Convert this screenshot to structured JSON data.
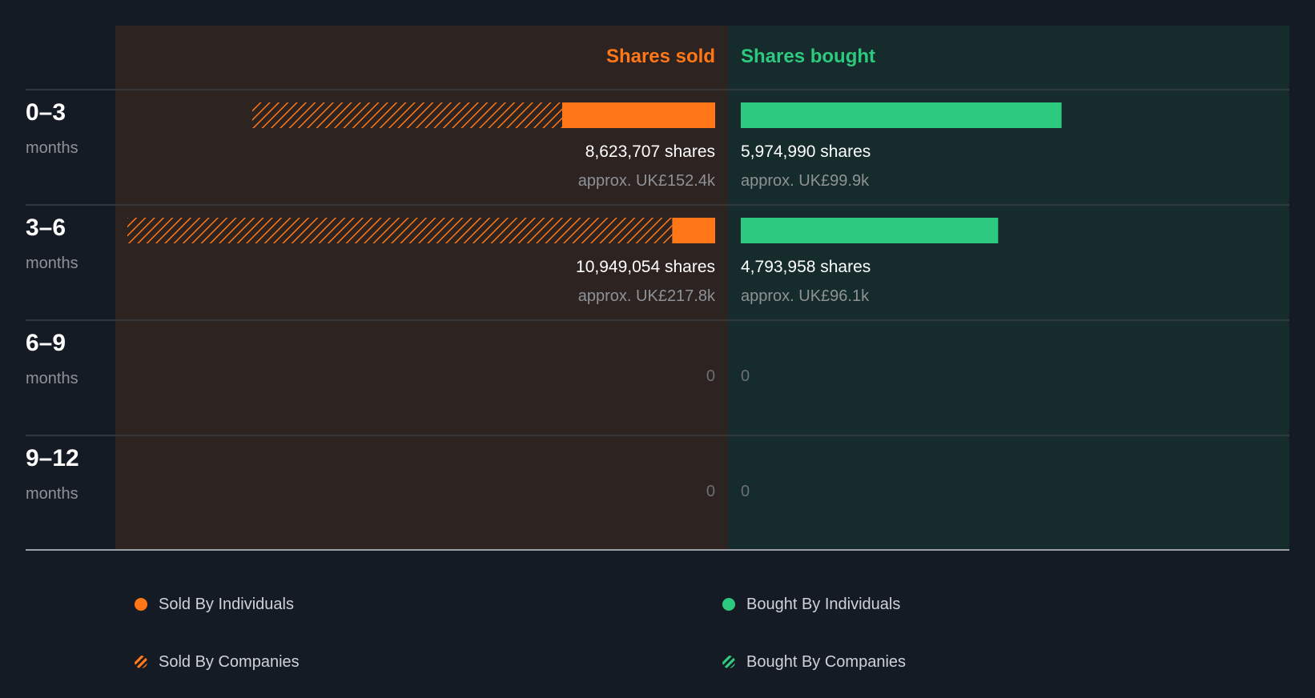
{
  "chart_data": {
    "type": "bar",
    "headers": {
      "sold": "Shares sold",
      "bought": "Shares bought"
    },
    "rows": [
      {
        "period": "0–3",
        "unit": "months",
        "sold_individuals": 2850000,
        "sold_companies": 5773707,
        "sold_total_label": "8,623,707 shares",
        "sold_value_label": "approx. UK£152.4k",
        "bought_individuals": 5974990,
        "bought_companies": 0,
        "bought_total_label": "5,974,990 shares",
        "bought_value_label": "approx. UK£99.9k"
      },
      {
        "period": "3–6",
        "unit": "months",
        "sold_individuals": 800000,
        "sold_companies": 10149054,
        "sold_total_label": "10,949,054 shares",
        "sold_value_label": "approx. UK£217.8k",
        "bought_individuals": 4793958,
        "bought_companies": 0,
        "bought_total_label": "4,793,958 shares",
        "bought_value_label": "approx. UK£96.1k"
      },
      {
        "period": "6–9",
        "unit": "months",
        "sold_individuals": 0,
        "sold_companies": 0,
        "sold_total_label": "0",
        "sold_value_label": "",
        "bought_individuals": 0,
        "bought_companies": 0,
        "bought_total_label": "0",
        "bought_value_label": ""
      },
      {
        "period": "9–12",
        "unit": "months",
        "sold_individuals": 0,
        "sold_companies": 0,
        "sold_total_label": "0",
        "sold_value_label": "",
        "bought_individuals": 0,
        "bought_companies": 0,
        "bought_total_label": "0",
        "bought_value_label": ""
      }
    ],
    "max_shares": 10949054,
    "legend": [
      {
        "key": "sold_individuals",
        "label": "Sold By Individuals"
      },
      {
        "key": "sold_companies",
        "label": "Sold By Companies"
      },
      {
        "key": "bought_individuals",
        "label": "Bought By Individuals"
      },
      {
        "key": "bought_companies",
        "label": "Bought By Companies"
      }
    ],
    "colors": {
      "background": "#151b24",
      "sold_panel": "#2d2321",
      "bought_panel": "#162b2b",
      "sold": "#ff7716",
      "bought": "#2dc97e",
      "divider": "#3a3f46",
      "muted_text": "#8e9296",
      "zero_text": "#6c7075"
    }
  }
}
